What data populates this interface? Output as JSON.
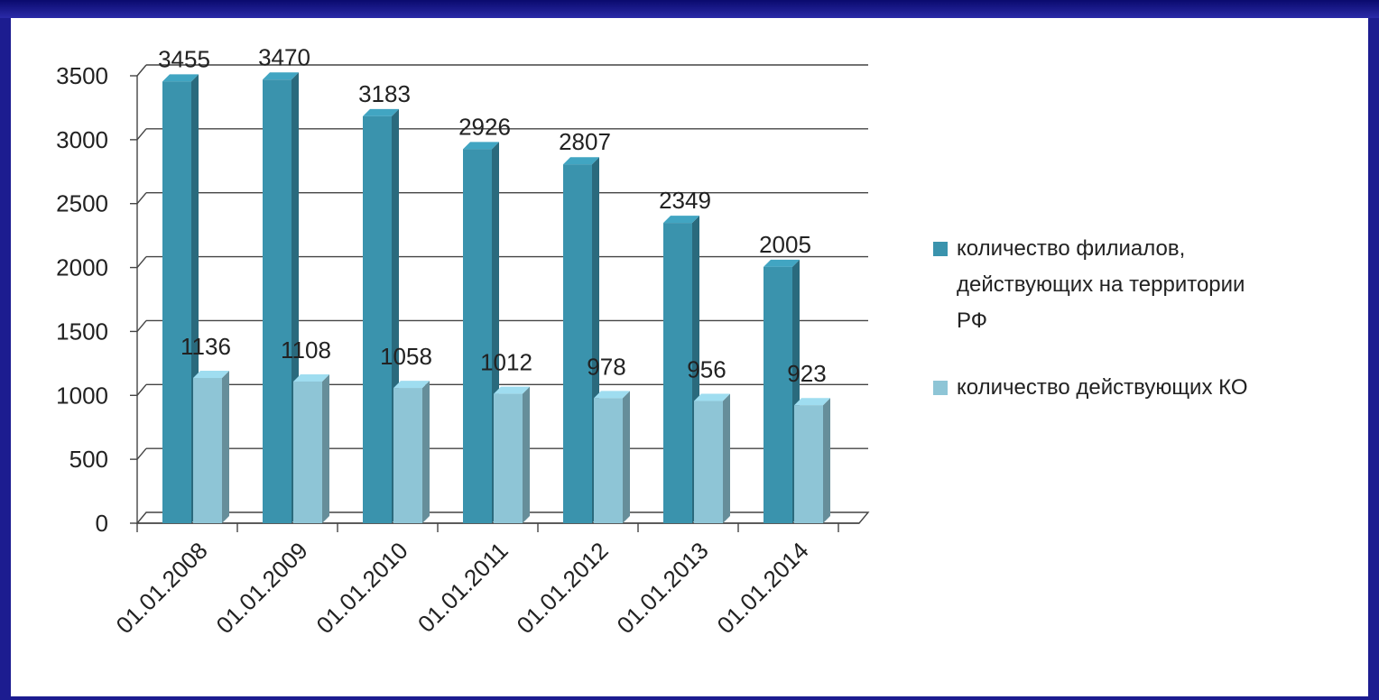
{
  "colors": {
    "frame": "#1c1c90",
    "background": "#ffffff",
    "series_dark": "#3a93ad",
    "series_light": "#8ec5d6",
    "gridline": "#444444",
    "text": "#222222"
  },
  "chart_data": {
    "type": "bar",
    "style": "3d-clustered-column",
    "categories": [
      "01.01.2008",
      "01.01.2009",
      "01.01.2010",
      "01.01.2011",
      "01.01.2012",
      "01.01.2013",
      "01.01.2014"
    ],
    "series": [
      {
        "name": "количество филиалов, действующих на территории РФ",
        "legend_lines": [
          "количество филиалов,",
          "действующих на территории",
          "РФ"
        ],
        "values": [
          3455,
          3470,
          3183,
          2926,
          2807,
          2349,
          2005
        ],
        "labels": [
          "3455",
          "3470",
          "3183",
          "2926",
          "2807",
          "2349",
          "2005"
        ]
      },
      {
        "name": "количество действующих КО",
        "legend_lines": [
          "количество действующих КО"
        ],
        "values": [
          1136,
          1108,
          1058,
          1012,
          978,
          956,
          923
        ],
        "labels": [
          "1136",
          "1108",
          "1058",
          "1012",
          "978",
          "956",
          "923"
        ]
      }
    ],
    "yticks": [
      "0",
      "500",
      "1000",
      "1500",
      "2000",
      "2500",
      "3000",
      "3500"
    ],
    "ylim": [
      0,
      3500
    ],
    "grid": true,
    "legend_position": "right",
    "title": "",
    "xlabel": "",
    "ylabel": ""
  }
}
